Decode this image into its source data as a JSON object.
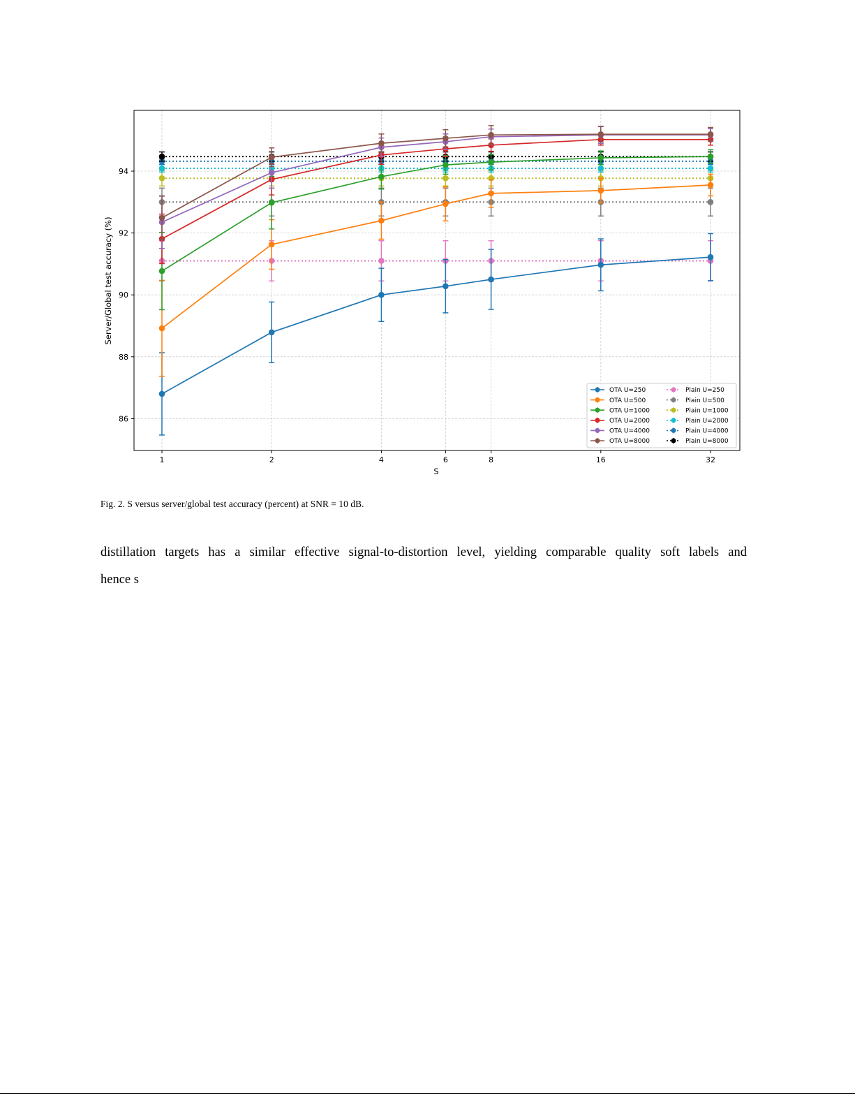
{
  "figure": {
    "caption": "Fig. 2.  S versus server/global test accuracy (percent) at SNR = 10 dB."
  },
  "text": {
    "line1": "distillation targets has a similar effective signal-to-distortion level, yielding comparable quality soft labels and",
    "line2": "hence s"
  },
  "chart_data": {
    "type": "line",
    "title": "",
    "xlabel": "S",
    "ylabel": "Server/Global test accuracy (%)",
    "x_scale": "log2",
    "x": [
      1,
      2,
      4,
      6,
      8,
      16,
      32
    ],
    "x_tick_labels": [
      "1",
      "2",
      "4",
      "6",
      "8",
      "16",
      "32"
    ],
    "y_ticks": [
      86,
      88,
      90,
      92,
      94
    ],
    "ylim": [
      85.0,
      96.0
    ],
    "grid": true,
    "legend_position": "lower right",
    "series": [
      {
        "name": "OTA U=250",
        "color": "#1f77b4",
        "style": "solid",
        "values": [
          86.8,
          88.79,
          90.0,
          90.28,
          90.5,
          90.97,
          91.22
        ],
        "err": [
          1.33,
          0.98,
          0.86,
          0.86,
          0.97,
          0.84,
          0.76
        ]
      },
      {
        "name": "OTA U=500",
        "color": "#ff7f0e",
        "style": "solid",
        "values": [
          88.92,
          91.63,
          92.4,
          92.94,
          93.28,
          93.37,
          93.55
        ],
        "err": [
          1.55,
          0.8,
          0.6,
          0.55,
          0.45,
          0.4,
          0.35
        ]
      },
      {
        "name": "OTA U=1000",
        "color": "#2ca02c",
        "style": "solid",
        "values": [
          90.77,
          92.98,
          93.82,
          94.2,
          94.29,
          94.43,
          94.47
        ],
        "err": [
          1.25,
          0.85,
          0.4,
          0.3,
          0.25,
          0.22,
          0.22
        ]
      },
      {
        "name": "OTA U=2000",
        "color": "#d62728",
        "style": "solid",
        "values": [
          91.81,
          93.73,
          94.52,
          94.72,
          94.84,
          95.02,
          95.02
        ],
        "err": [
          0.8,
          0.5,
          0.3,
          0.25,
          0.2,
          0.18,
          0.18
        ]
      },
      {
        "name": "OTA U=4000",
        "color": "#9467bd",
        "style": "solid",
        "values": [
          92.35,
          93.95,
          94.77,
          94.95,
          95.11,
          95.17,
          95.17
        ],
        "err": [
          0.85,
          0.5,
          0.3,
          0.25,
          0.25,
          0.28,
          0.2
        ]
      },
      {
        "name": "OTA U=8000",
        "color": "#8c564b",
        "style": "solid",
        "values": [
          92.49,
          94.45,
          94.9,
          95.06,
          95.17,
          95.19,
          95.19
        ],
        "err": [
          0.7,
          0.3,
          0.3,
          0.28,
          0.3,
          0.25,
          0.22
        ]
      },
      {
        "name": "Plain U=250",
        "color": "#e377c2",
        "style": "dotted",
        "values": [
          91.1,
          91.1,
          91.1,
          91.1,
          91.1,
          91.1,
          91.1
        ],
        "err": [
          0.65,
          0.65,
          0.65,
          0.65,
          0.65,
          0.65,
          0.65
        ]
      },
      {
        "name": "Plain U=500",
        "color": "#7f7f7f",
        "style": "dotted",
        "values": [
          93.0,
          93.0,
          93.0,
          93.0,
          93.0,
          93.0,
          93.0
        ],
        "err": [
          0.45,
          0.45,
          0.45,
          0.45,
          0.45,
          0.45,
          0.45
        ]
      },
      {
        "name": "Plain U=1000",
        "color": "#bcbd22",
        "style": "dotted",
        "values": [
          93.77,
          93.77,
          93.77,
          93.77,
          93.77,
          93.77,
          93.77
        ],
        "err": [
          0.25,
          0.25,
          0.25,
          0.25,
          0.25,
          0.25,
          0.25
        ]
      },
      {
        "name": "Plain U=2000",
        "color": "#17becf",
        "style": "dotted",
        "values": [
          94.09,
          94.09,
          94.09,
          94.09,
          94.09,
          94.09,
          94.09
        ],
        "err": [
          0.12,
          0.12,
          0.12,
          0.12,
          0.12,
          0.12,
          0.12
        ]
      },
      {
        "name": "Plain U=4000",
        "color": "#1f77b4",
        "style": "dotted",
        "values": [
          94.32,
          94.32,
          94.32,
          94.32,
          94.32,
          94.32,
          94.32
        ],
        "err": [
          0.1,
          0.1,
          0.1,
          0.1,
          0.1,
          0.1,
          0.1
        ]
      },
      {
        "name": "Plain U=8000",
        "color": "#000000",
        "style": "dotted",
        "values": [
          94.47,
          94.47,
          94.47,
          94.47,
          94.47,
          94.47,
          94.47
        ],
        "err": [
          0.15,
          0.15,
          0.15,
          0.15,
          0.15,
          0.15,
          0.15
        ]
      }
    ]
  }
}
